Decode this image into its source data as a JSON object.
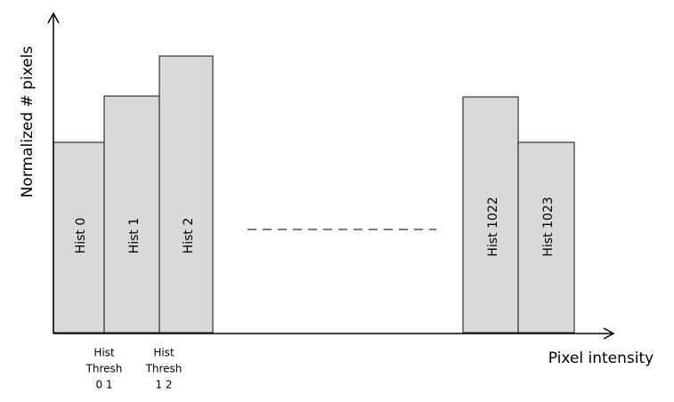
{
  "y_axis_label": "Normalized # pixels",
  "x_axis_label": "Pixel intensity",
  "bars": [
    {
      "label": "Hist 0"
    },
    {
      "label": "Hist 1"
    },
    {
      "label": "Hist 2"
    },
    {
      "label": "Hist 1022"
    },
    {
      "label": "Hist 1023"
    }
  ],
  "thresholds": [
    {
      "lines": [
        "Hist",
        "Thresh",
        "0 1"
      ]
    },
    {
      "lines": [
        "Hist",
        "Thresh",
        "1 2"
      ]
    }
  ]
}
